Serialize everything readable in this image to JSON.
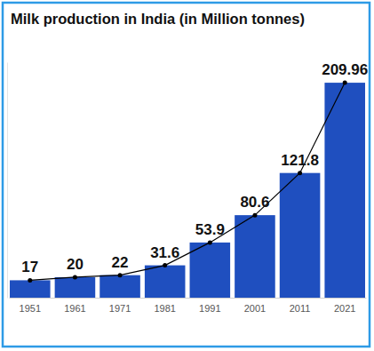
{
  "chart_data": {
    "type": "bar",
    "title": "Milk production in India (in Million tonnes)",
    "categories": [
      "1951",
      "1961",
      "1971",
      "1981",
      "1991",
      "2001",
      "2011",
      "2021"
    ],
    "series": [
      {
        "type": "bar",
        "color": "#1f4fbf",
        "values": [
          17,
          20,
          22,
          31.6,
          53.9,
          80.6,
          121.8,
          209.96
        ]
      },
      {
        "type": "line",
        "color": "#000000",
        "marker": "circle",
        "values": [
          17,
          20,
          22,
          31.6,
          53.9,
          80.6,
          121.8,
          209.96
        ]
      }
    ],
    "ylim": [
      0,
      230
    ],
    "yticks": [],
    "grid": false,
    "data_labels": true,
    "tick_labels": "x"
  }
}
